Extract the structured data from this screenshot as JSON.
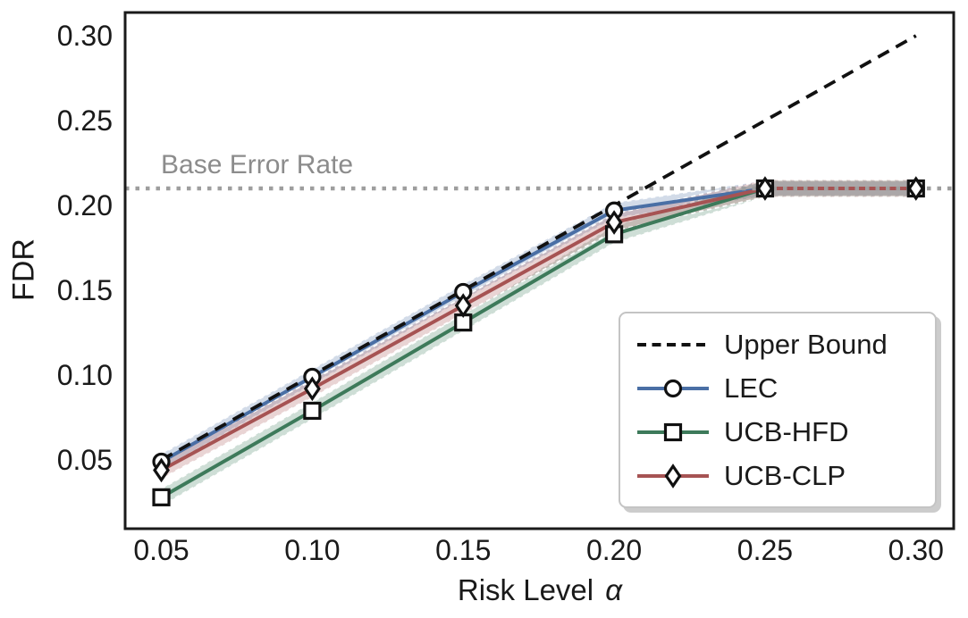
{
  "figure": {
    "ylabel": "FDR",
    "xlabel_prefix": "Risk Level",
    "xlabel_alpha": "α",
    "annotation": "Base Error Rate"
  },
  "colors": {
    "foreground": "#1a1a1a",
    "upper_bound": "#111111",
    "lec": "#4a6fa5",
    "ucb_hfd": "#3d7a5a",
    "ucb_clp": "#a65353",
    "base_line": "#9e9e9e",
    "annotation_text": "#8c8c8c",
    "marker_fill": "#ffffff",
    "marker_edge": "#111111"
  },
  "legend": {
    "entries": [
      {
        "label": "Upper Bound",
        "line": "dashed",
        "color_key": "upper_bound",
        "marker": "none"
      },
      {
        "label": "LEC",
        "line": "solid",
        "color_key": "lec",
        "marker": "circle"
      },
      {
        "label": "UCB-HFD",
        "line": "solid",
        "color_key": "ucb_hfd",
        "marker": "square"
      },
      {
        "label": "UCB-CLP",
        "line": "solid",
        "color_key": "ucb_clp",
        "marker": "diamond"
      }
    ]
  },
  "chart_data": {
    "type": "line",
    "title": "",
    "xlabel": "Risk Level α",
    "ylabel": "FDR",
    "x": [
      0.05,
      0.1,
      0.15,
      0.2,
      0.25,
      0.3
    ],
    "series": [
      {
        "name": "Upper Bound",
        "values": [
          0.05,
          0.1,
          0.15,
          0.2,
          0.25,
          0.3
        ],
        "style": "dashed",
        "color_key": "upper_bound",
        "marker": "none",
        "band": 0
      },
      {
        "name": "LEC",
        "values": [
          0.049,
          0.099,
          0.149,
          0.197,
          0.21,
          0.21
        ],
        "style": "solid",
        "color_key": "lec",
        "marker": "circle",
        "band": 0.0045
      },
      {
        "name": "UCB-HFD",
        "values": [
          0.028,
          0.079,
          0.131,
          0.183,
          0.21,
          0.21
        ],
        "style": "solid",
        "color_key": "ucb_hfd",
        "marker": "square",
        "band": 0.005
      },
      {
        "name": "UCB-CLP",
        "values": [
          0.044,
          0.092,
          0.141,
          0.19,
          0.21,
          0.21
        ],
        "style": "solid",
        "color_key": "ucb_clp",
        "marker": "diamond",
        "band": 0.005
      }
    ],
    "base_error_rate": 0.21,
    "xticks": [
      {
        "v": 0.05,
        "label": "0.05"
      },
      {
        "v": 0.1,
        "label": "0.10"
      },
      {
        "v": 0.15,
        "label": "0.15"
      },
      {
        "v": 0.2,
        "label": "0.20"
      },
      {
        "v": 0.25,
        "label": "0.25"
      },
      {
        "v": 0.3,
        "label": "0.30"
      }
    ],
    "yticks": [
      {
        "v": 0.05,
        "label": "0.05"
      },
      {
        "v": 0.1,
        "label": "0.10"
      },
      {
        "v": 0.15,
        "label": "0.15"
      },
      {
        "v": 0.2,
        "label": "0.20"
      },
      {
        "v": 0.25,
        "label": "0.25"
      },
      {
        "v": 0.3,
        "label": "0.30"
      }
    ],
    "xlim": [
      0.038,
      0.3125
    ],
    "ylim": [
      0.0095,
      0.3137
    ],
    "grid": false,
    "legend_position": "lower right"
  }
}
